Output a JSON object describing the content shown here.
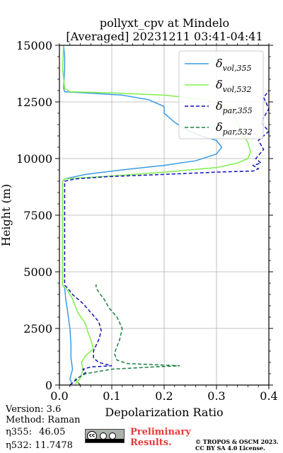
{
  "chart_data": {
    "type": "line",
    "title": "pollyxt_cpv at Mindelo",
    "subtitle": "[Averaged] 20231211 03:41-04:41",
    "xlabel": "Depolarization Ratio",
    "ylabel": "Height (m)",
    "xlim": [
      0,
      0.4
    ],
    "ylim": [
      0,
      15000
    ],
    "xticks": [
      "0.0",
      "0.1",
      "0.2",
      "0.3",
      "0.4"
    ],
    "yticks": [
      "0",
      "2500",
      "5000",
      "7500",
      "10000",
      "12500",
      "15000"
    ],
    "grid": true,
    "legend_position": "top-right",
    "series": [
      {
        "name": "δvol,355",
        "legend_main": "δ",
        "legend_sub": "vol,355",
        "color": "#3a9be6",
        "dash": "",
        "points": [
          [
            0.025,
            50
          ],
          [
            0.02,
            250
          ],
          [
            0.025,
            700
          ],
          [
            0.022,
            1200
          ],
          [
            0.022,
            1800
          ],
          [
            0.02,
            2500
          ],
          [
            0.016,
            3200
          ],
          [
            0.012,
            3800
          ],
          [
            0.01,
            4300
          ],
          [
            0.006,
            4400
          ],
          [
            0.006,
            5000
          ],
          [
            0.006,
            6000
          ],
          [
            0.006,
            7000
          ],
          [
            0.006,
            8000
          ],
          [
            0.006,
            9000
          ],
          [
            0.01,
            9100
          ],
          [
            0.05,
            9300
          ],
          [
            0.12,
            9500
          ],
          [
            0.2,
            9700
          ],
          [
            0.26,
            9900
          ],
          [
            0.3,
            10200
          ],
          [
            0.31,
            10500
          ],
          [
            0.3,
            10800
          ],
          [
            0.27,
            11000
          ],
          [
            0.24,
            11300
          ],
          [
            0.22,
            11600
          ],
          [
            0.2,
            12000
          ],
          [
            0.2,
            12300
          ],
          [
            0.17,
            12600
          ],
          [
            0.12,
            12800
          ],
          [
            0.05,
            12900
          ],
          [
            0.01,
            12950
          ],
          [
            0.008,
            13100
          ],
          [
            0.01,
            14000
          ],
          [
            0.01,
            14500
          ],
          [
            0.008,
            15000
          ]
        ]
      },
      {
        "name": "δvol,532",
        "legend_main": "δ",
        "legend_sub": "vol,532",
        "color": "#7ff04a",
        "dash": "",
        "points": [
          [
            0.03,
            50
          ],
          [
            0.04,
            300
          ],
          [
            0.045,
            700
          ],
          [
            0.042,
            1000
          ],
          [
            0.05,
            1300
          ],
          [
            0.065,
            1600
          ],
          [
            0.06,
            2000
          ],
          [
            0.055,
            2300
          ],
          [
            0.05,
            2700
          ],
          [
            0.035,
            3200
          ],
          [
            0.025,
            3800
          ],
          [
            0.015,
            4200
          ],
          [
            0.006,
            4400
          ],
          [
            0.006,
            5000
          ],
          [
            0.006,
            6000
          ],
          [
            0.006,
            7000
          ],
          [
            0.006,
            8000
          ],
          [
            0.006,
            9000
          ],
          [
            0.01,
            9100
          ],
          [
            0.08,
            9200
          ],
          [
            0.2,
            9400
          ],
          [
            0.3,
            9600
          ],
          [
            0.34,
            9800
          ],
          [
            0.36,
            10000
          ],
          [
            0.365,
            10300
          ],
          [
            0.36,
            10700
          ],
          [
            0.35,
            11100
          ],
          [
            0.34,
            11600
          ],
          [
            0.33,
            12000
          ],
          [
            0.32,
            12300
          ],
          [
            0.28,
            12600
          ],
          [
            0.2,
            12800
          ],
          [
            0.1,
            12900
          ],
          [
            0.02,
            12950
          ],
          [
            0.01,
            13100
          ],
          [
            0.006,
            14000
          ],
          [
            0.008,
            15000
          ]
        ]
      },
      {
        "name": "δpar,355",
        "legend_main": "δ",
        "legend_sub": "par,355",
        "color": "#1111bb",
        "dash": "5,3",
        "points": [
          [
            0.02,
            0
          ],
          [
            0.035,
            300
          ],
          [
            0.05,
            550
          ],
          [
            0.045,
            700
          ],
          [
            0.06,
            800
          ],
          [
            0.1,
            850
          ],
          [
            0.075,
            1000
          ],
          [
            0.065,
            1200
          ],
          [
            0.065,
            1500
          ],
          [
            0.075,
            2000
          ],
          [
            0.08,
            2400
          ],
          [
            0.075,
            2800
          ],
          [
            0.06,
            3200
          ],
          [
            0.045,
            3600
          ],
          [
            0.025,
            4000
          ],
          [
            0.015,
            4300
          ],
          [
            0.01,
            4400
          ],
          [
            0.01,
            5000
          ],
          [
            0.01,
            6000
          ],
          [
            0.01,
            7000
          ],
          [
            0.01,
            8000
          ],
          [
            0.01,
            9000
          ],
          [
            0.03,
            9100
          ],
          [
            0.09,
            9200
          ],
          [
            0.2,
            9300
          ],
          [
            0.3,
            9400
          ],
          [
            0.37,
            9450
          ],
          [
            0.38,
            9550
          ],
          [
            0.37,
            9700
          ],
          [
            0.385,
            9800
          ],
          [
            0.375,
            10000
          ],
          [
            0.39,
            10400
          ],
          [
            0.38,
            10800
          ],
          [
            0.4,
            11200
          ],
          [
            0.385,
            11600
          ],
          [
            0.4,
            12200
          ],
          [
            0.39,
            12700
          ],
          [
            0.4,
            13000
          ]
        ]
      },
      {
        "name": "δpar,532",
        "legend_main": "δ",
        "legend_sub": "par,532",
        "color": "#188040",
        "dash": "5,3",
        "points": [
          [
            0.04,
            0
          ],
          [
            0.03,
            250
          ],
          [
            0.05,
            500
          ],
          [
            0.1,
            700
          ],
          [
            0.18,
            800
          ],
          [
            0.23,
            850
          ],
          [
            0.13,
            950
          ],
          [
            0.11,
            1100
          ],
          [
            0.105,
            1400
          ],
          [
            0.11,
            1700
          ],
          [
            0.115,
            2000
          ],
          [
            0.12,
            2500
          ],
          [
            0.11,
            3000
          ],
          [
            0.095,
            3400
          ],
          [
            0.085,
            3800
          ],
          [
            0.075,
            4100
          ],
          [
            0.07,
            4300
          ],
          [
            0.07,
            4450
          ]
        ]
      }
    ]
  },
  "info": {
    "version": "Version: 3.6",
    "method": "Method: Raman",
    "eta355_label": "η355:",
    "eta355_value": "46.05",
    "eta532_label": "η532:",
    "eta532_value": "11.7478"
  },
  "cc_badge_text": "cc",
  "preliminary_line1": "Preliminary",
  "preliminary_line2": "Results.",
  "copyright_line1": "© TROPOS & OSCM 2023.",
  "copyright_line2": "CC BY SA 4.0 License."
}
